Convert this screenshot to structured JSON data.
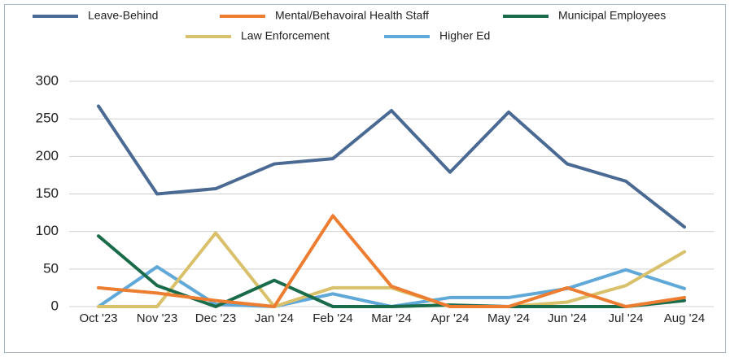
{
  "chart_data": {
    "type": "line",
    "categories": [
      "Oct '23",
      "Nov '23",
      "Dec '23",
      "Jan '24",
      "Feb '24",
      "Mar '24",
      "Apr '24",
      "May '24",
      "Jun '24",
      "Jul '24",
      "Aug '24"
    ],
    "series": [
      {
        "name": "Leave-Behind",
        "color": "#4a6a94",
        "values": [
          267,
          150,
          157,
          190,
          197,
          261,
          179,
          259,
          190,
          167,
          106
        ]
      },
      {
        "name": "Mental/Behavoiral Health Staff",
        "color": "#ed7d31",
        "values": [
          25,
          18,
          8,
          0,
          121,
          27,
          0,
          0,
          25,
          0,
          12
        ]
      },
      {
        "name": "Municipal Employees",
        "color": "#1a6b4a",
        "values": [
          94,
          28,
          0,
          35,
          0,
          0,
          2,
          0,
          0,
          0,
          8
        ]
      },
      {
        "name": "Law Enforcement",
        "color": "#d9c06a",
        "values": [
          0,
          0,
          98,
          0,
          25,
          25,
          0,
          0,
          6,
          28,
          73
        ]
      },
      {
        "name": "Higher Ed",
        "color": "#5fa8d8",
        "values": [
          0,
          53,
          3,
          0,
          17,
          0,
          12,
          12,
          24,
          49,
          24
        ]
      }
    ],
    "ylim": [
      0,
      300
    ],
    "yticks": [
      0,
      50,
      100,
      150,
      200,
      250,
      300
    ],
    "grid": true
  }
}
